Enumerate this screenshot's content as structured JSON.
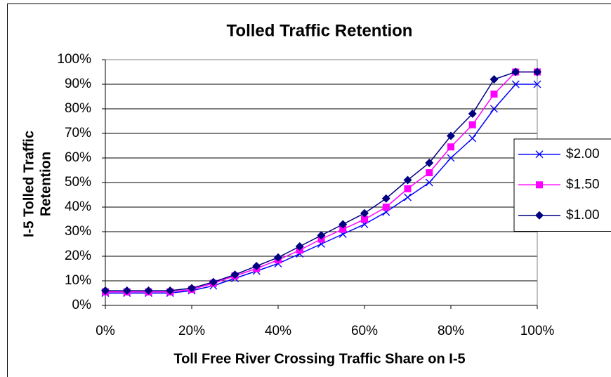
{
  "chart_data": {
    "type": "line",
    "title": "Tolled Traffic Retention",
    "xlabel": "Toll Free River Crossing Traffic Share on I-5",
    "ylabel": [
      "I-5 Tolled Traffic",
      "Retention"
    ],
    "x": [
      0,
      5,
      10,
      15,
      20,
      25,
      30,
      35,
      40,
      45,
      50,
      55,
      60,
      65,
      70,
      75,
      80,
      85,
      90,
      95,
      100
    ],
    "series": [
      {
        "name": "$2.00",
        "color": "#0000ff",
        "marker": "x",
        "values": [
          5,
          5,
          5,
          5,
          6,
          8,
          11,
          14,
          17,
          21,
          25,
          29,
          33,
          38,
          44,
          50,
          60,
          68,
          80,
          90,
          90
        ]
      },
      {
        "name": "$1.50",
        "color": "#ff00ff",
        "marker": "square",
        "values": [
          5.5,
          5.5,
          5.5,
          5.5,
          6.5,
          9,
          12,
          15,
          18.5,
          22.5,
          27,
          31,
          35,
          40,
          47.5,
          54,
          64.5,
          73.5,
          86,
          95,
          95
        ]
      },
      {
        "name": "$1.00",
        "color": "#000080",
        "marker": "diamond",
        "values": [
          6,
          6,
          6,
          6,
          7,
          9.5,
          12.5,
          16,
          19.5,
          24,
          28.5,
          33,
          37.5,
          43.5,
          51,
          58,
          69,
          78,
          92,
          95,
          95
        ]
      }
    ],
    "xlim": [
      0,
      100
    ],
    "xticks": [
      {
        "value": 0,
        "label": "0%"
      },
      {
        "value": 20,
        "label": "20%"
      },
      {
        "value": 40,
        "label": "40%"
      },
      {
        "value": 60,
        "label": "60%"
      },
      {
        "value": 80,
        "label": "80%"
      },
      {
        "value": 100,
        "label": "100%"
      }
    ],
    "ylim": [
      0,
      100
    ],
    "yticks": [
      {
        "value": 0,
        "label": "0%"
      },
      {
        "value": 10,
        "label": "10%"
      },
      {
        "value": 20,
        "label": "20%"
      },
      {
        "value": 30,
        "label": "30%"
      },
      {
        "value": 40,
        "label": "40%"
      },
      {
        "value": 50,
        "label": "50%"
      },
      {
        "value": 60,
        "label": "60%"
      },
      {
        "value": 70,
        "label": "70%"
      },
      {
        "value": 80,
        "label": "80%"
      },
      {
        "value": 90,
        "label": "90%"
      },
      {
        "value": 100,
        "label": "100%"
      }
    ],
    "grid": true,
    "legend": "right"
  }
}
